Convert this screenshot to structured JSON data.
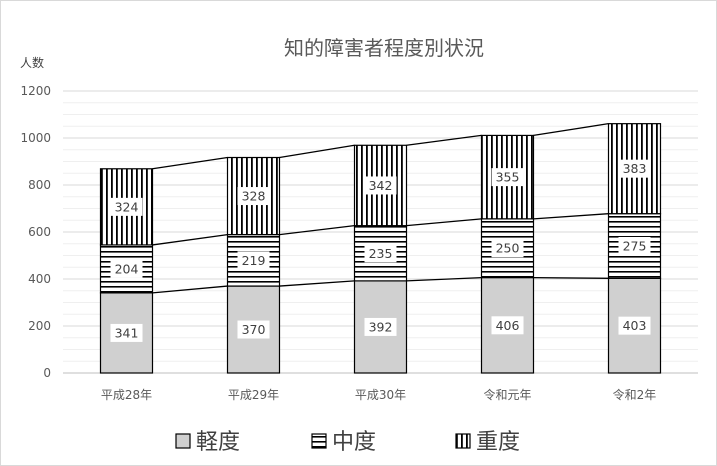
{
  "chart_data": {
    "type": "bar",
    "stacked": true,
    "title": "知的障害者程度別状況",
    "ylabel": "人数",
    "xlabel": "",
    "categories": [
      "平成28年",
      "平成29年",
      "平成30年",
      "令和元年",
      "令和2年"
    ],
    "ylim": [
      0,
      1200
    ],
    "yticks": [
      0,
      200,
      400,
      600,
      800,
      1000,
      1200
    ],
    "grid": true,
    "legend_position": "bottom",
    "series_lines": true,
    "series": [
      {
        "name": "軽度",
        "values": [
          341,
          370,
          392,
          406,
          403
        ],
        "pattern": "solid",
        "color": "#d0d0d0"
      },
      {
        "name": "中度",
        "values": [
          204,
          219,
          235,
          250,
          275
        ],
        "pattern": "horizontal-lines",
        "color": "#000000"
      },
      {
        "name": "重度",
        "values": [
          324,
          328,
          342,
          355,
          383
        ],
        "pattern": "vertical-lines",
        "color": "#000000"
      }
    ]
  }
}
